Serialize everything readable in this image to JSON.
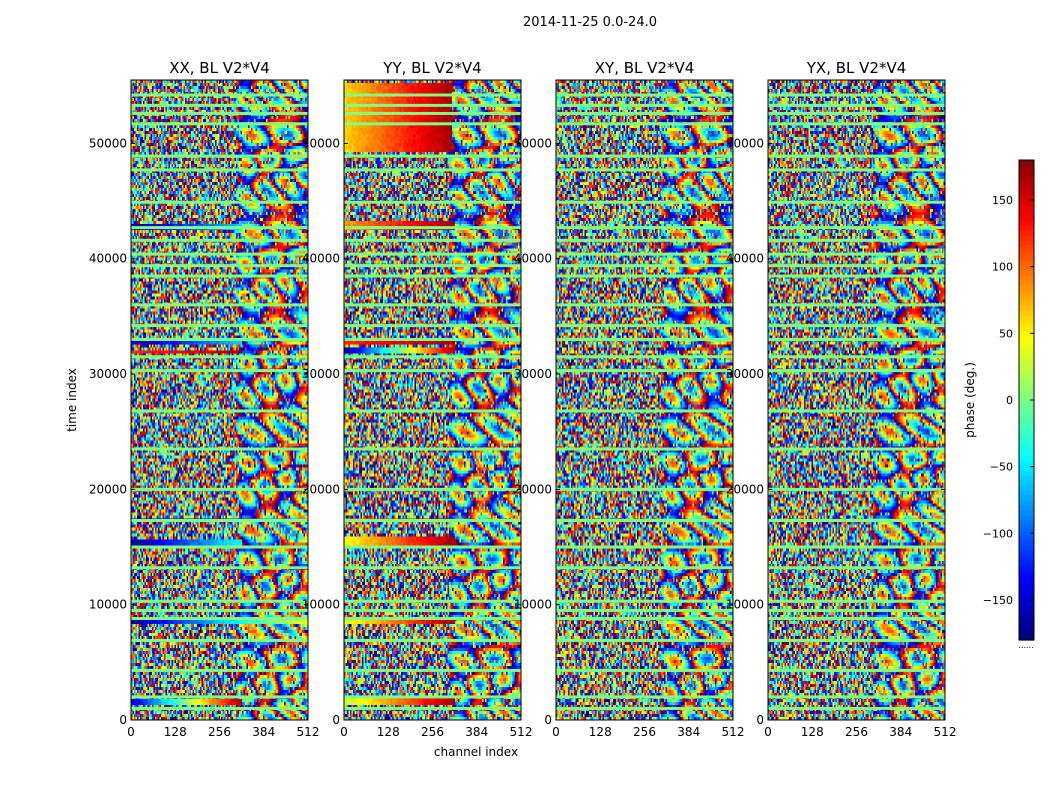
{
  "chart_data": {
    "type": "heatmap",
    "suptitle": "2014-11-25 0.0-24.0",
    "xlabel": "channel index",
    "ylabel": "time index",
    "xlim": [
      0,
      512
    ],
    "ylim": [
      0,
      55500
    ],
    "x_ticks": [
      "0",
      "128",
      "256",
      "384",
      "512"
    ],
    "y_ticks": [
      "0",
      "10000",
      "20000",
      "30000",
      "40000",
      "50000"
    ],
    "panels": [
      {
        "title": "XX, BL V2*V4",
        "polarization": "XX",
        "bands": [
          {
            "t": [
              1500,
              2000
            ],
            "c_range": [
              0,
              320
            ],
            "phase": [
              -150,
              170
            ]
          },
          {
            "t": [
              8500,
              9000
            ],
            "c_range": [
              0,
              512
            ],
            "phase": [
              -170,
              40
            ]
          },
          {
            "t": [
              15300,
              15800
            ],
            "c_range": [
              0,
              320
            ],
            "phase": [
              -170,
              -40
            ]
          },
          {
            "t": [
              17200,
              17700
            ],
            "c_range": [
              0,
              512
            ],
            "phase": [
              -170,
              -60
            ]
          },
          {
            "t": [
              31800,
              32300
            ],
            "c_range": [
              0,
              320
            ],
            "phase": [
              120,
              170
            ]
          },
          {
            "t": [
              32700,
              33100
            ],
            "c_range": [
              0,
              320
            ],
            "phase": [
              -170,
              -60
            ]
          },
          {
            "t": [
              42700,
              43200
            ],
            "c_range": [
              0,
              320
            ],
            "phase": [
              -170,
              -60
            ]
          }
        ]
      },
      {
        "title": "YY, BL V2*V4",
        "polarization": "YY",
        "bands": [
          {
            "t": [
              1500,
              2100
            ],
            "c_range": [
              0,
              320
            ],
            "phase": [
              20,
              170
            ]
          },
          {
            "t": [
              8400,
              9000
            ],
            "c_range": [
              0,
              320
            ],
            "phase": [
              30,
              170
            ]
          },
          {
            "t": [
              15300,
              15900
            ],
            "c_range": [
              0,
              320
            ],
            "phase": [
              40,
              170
            ]
          },
          {
            "t": [
              17200,
              17700
            ],
            "c_range": [
              0,
              320
            ],
            "phase": [
              80,
              170
            ]
          },
          {
            "t": [
              31800,
              32400
            ],
            "c_range": [
              0,
              320
            ],
            "phase": [
              -170,
              170
            ]
          },
          {
            "t": [
              32700,
              33200
            ],
            "c_range": [
              0,
              320
            ],
            "phase": [
              120,
              170
            ]
          },
          {
            "t": [
              42700,
              43300
            ],
            "c_range": [
              0,
              320
            ],
            "phase": [
              80,
              170
            ]
          },
          {
            "t": [
              49500,
              55300
            ],
            "c_range": [
              0,
              310
            ],
            "phase": [
              60,
              170
            ]
          }
        ]
      },
      {
        "title": "XY, BL V2*V4",
        "polarization": "XY",
        "bands": []
      },
      {
        "title": "YX, BL V2*V4",
        "polarization": "YX",
        "bands": []
      }
    ],
    "flagged_rows": [
      1000,
      2000,
      4300,
      6900,
      8800,
      9500,
      10300,
      13200,
      15000,
      17300,
      20000,
      23500,
      26800,
      30300,
      31500,
      33000,
      34200,
      36000,
      38500,
      39400,
      40400,
      41600,
      42700,
      44900,
      47700,
      48900,
      51700,
      52600,
      53300,
      54200
    ],
    "colorbar": {
      "label": "phase (deg.)",
      "colormap": "jet",
      "range": [
        -180,
        180
      ],
      "ticks": [
        "150",
        "100",
        "50",
        "0",
        "−50",
        "−100",
        "−150"
      ],
      "tick_values": [
        150,
        100,
        50,
        0,
        -50,
        -100,
        -150
      ],
      "note": "......"
    }
  }
}
